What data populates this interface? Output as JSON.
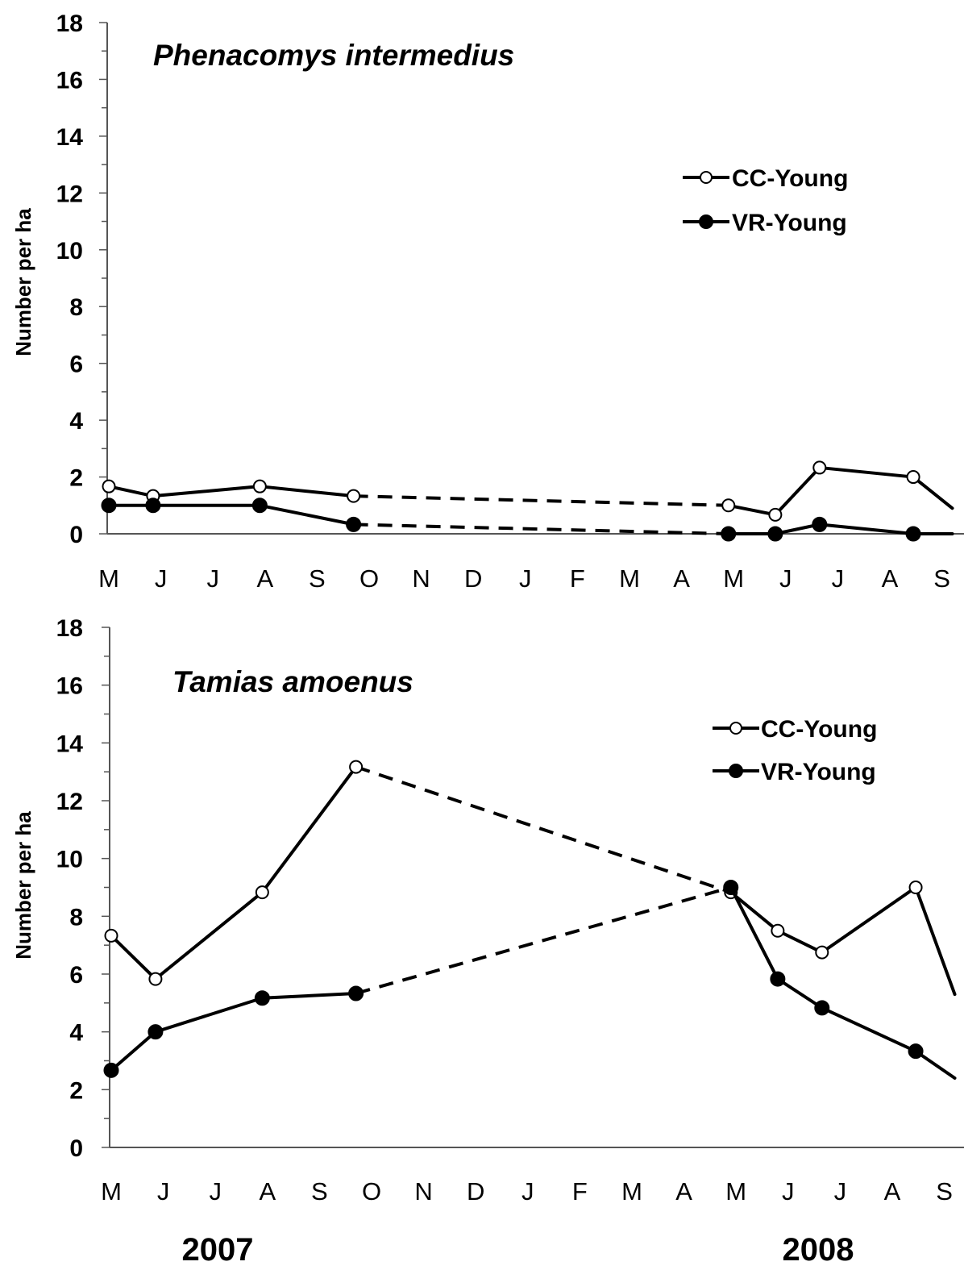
{
  "months": [
    "M",
    "J",
    "J",
    "A",
    "S",
    "O",
    "N",
    "D",
    "J",
    "F",
    "M",
    "A",
    "M",
    "J",
    "J",
    "A",
    "S"
  ],
  "years": [
    "2007",
    "2008"
  ],
  "chart_data": [
    {
      "type": "line",
      "title": "Phenacomys intermedius",
      "ylabel": "Number per ha",
      "xlabel": "",
      "ylim": [
        0,
        18
      ],
      "yticks": [
        "0",
        "2",
        "4",
        "6",
        "8",
        "10",
        "12",
        "14",
        "16",
        "18"
      ],
      "legend_position": "upper-right",
      "series": [
        {
          "name": "CC-Young",
          "marker": "open-circle",
          "x": [
            0.0,
            0.85,
            2.9,
            4.7,
            11.9,
            12.8,
            13.65,
            15.45,
            16.2
          ],
          "y": [
            1.67,
            1.33,
            1.67,
            1.33,
            1.0,
            0.67,
            2.33,
            2.0,
            0.9
          ]
        },
        {
          "name": "VR-Young",
          "marker": "filled-circle",
          "x": [
            0.0,
            0.85,
            2.9,
            4.7,
            11.9,
            12.8,
            13.65,
            15.45,
            16.2
          ],
          "y": [
            1.0,
            1.0,
            1.0,
            0.33,
            0.0,
            0.0,
            0.33,
            0.0,
            0.0
          ]
        }
      ],
      "gap_dashed_between": [
        4.7,
        11.9
      ]
    },
    {
      "type": "line",
      "title": "Tamias amoenus",
      "ylabel": "Number per ha",
      "xlabel": "",
      "ylim": [
        0,
        18
      ],
      "yticks": [
        "0",
        "2",
        "4",
        "6",
        "8",
        "10",
        "12",
        "14",
        "16",
        "18"
      ],
      "legend_position": "upper-right",
      "series": [
        {
          "name": "CC-Young",
          "marker": "open-circle",
          "x": [
            0.0,
            0.85,
            2.9,
            4.7,
            11.9,
            12.8,
            13.65,
            15.45,
            16.2
          ],
          "y": [
            7.33,
            5.83,
            8.83,
            13.17,
            8.83,
            7.5,
            6.75,
            9.0,
            5.3
          ]
        },
        {
          "name": "VR-Young",
          "marker": "filled-circle",
          "x": [
            0.0,
            0.85,
            2.9,
            4.7,
            11.9,
            12.8,
            13.65,
            15.45,
            16.2
          ],
          "y": [
            2.67,
            4.0,
            5.17,
            5.33,
            9.0,
            5.83,
            4.83,
            3.33,
            2.4
          ]
        }
      ],
      "gap_dashed_between": [
        4.7,
        11.9
      ]
    }
  ]
}
